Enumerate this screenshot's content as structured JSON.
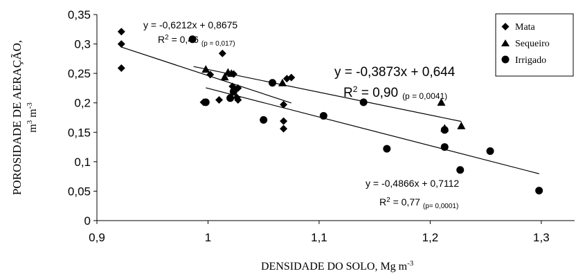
{
  "chart_data": {
    "type": "scatter",
    "xlabel": "DENSIDADE DO SOLO, Mg m",
    "xlabel_sup": "-3",
    "ylabel_line1": "POROSIDADE DE AERAÇÃO,",
    "ylabel_line2_a": "m",
    "ylabel_line2_sup1": "3",
    "ylabel_line2_b": " m",
    "ylabel_line2_sup2": "-3",
    "xlim": [
      0.9,
      1.33
    ],
    "ylim": [
      0,
      0.35
    ],
    "x_ticks": [
      0.9,
      1.0,
      1.1,
      1.2,
      1.3
    ],
    "x_tick_labels": [
      "0,9",
      "1",
      "1,1",
      "1,2",
      "1,3"
    ],
    "y_ticks": [
      0,
      0.05,
      0.1,
      0.15,
      0.2,
      0.25,
      0.3,
      0.35
    ],
    "y_tick_labels": [
      "0",
      "0,05",
      "0,1",
      "0,15",
      "0,2",
      "0,25",
      "0,3",
      "0,35"
    ],
    "legend_position": "top-right",
    "series": [
      {
        "name": "Mata",
        "marker": "diamond",
        "points": [
          [
            0.922,
            0.321
          ],
          [
            0.922,
            0.3
          ],
          [
            0.922,
            0.259
          ],
          [
            1.013,
            0.284
          ],
          [
            1.075,
            0.243
          ],
          [
            1.071,
            0.241
          ],
          [
            1.023,
            0.249
          ],
          [
            1.027,
            0.225
          ],
          [
            1.022,
            0.228
          ],
          [
            1.026,
            0.209
          ],
          [
            1.027,
            0.205
          ],
          [
            0.996,
            0.201
          ],
          [
            1.01,
            0.205
          ],
          [
            1.002,
            0.248
          ],
          [
            1.068,
            0.197
          ],
          [
            1.068,
            0.169
          ],
          [
            1.068,
            0.156
          ]
        ]
      },
      {
        "name": "Sequeiro",
        "marker": "triangle",
        "points": [
          [
            0.998,
            0.257
          ],
          [
            1.015,
            0.244
          ],
          [
            1.018,
            0.252
          ],
          [
            1.021,
            0.25
          ],
          [
            1.067,
            0.234
          ],
          [
            1.21,
            0.201
          ],
          [
            1.228,
            0.161
          ],
          [
            1.213,
            0.157
          ]
        ]
      },
      {
        "name": "Irrigado",
        "marker": "circle",
        "points": [
          [
            0.986,
            0.308
          ],
          [
            0.998,
            0.201
          ],
          [
            1.02,
            0.208
          ],
          [
            1.023,
            0.219
          ],
          [
            1.05,
            0.171
          ],
          [
            1.058,
            0.234
          ],
          [
            1.104,
            0.178
          ],
          [
            1.14,
            0.201
          ],
          [
            1.161,
            0.122
          ],
          [
            1.213,
            0.125
          ],
          [
            1.213,
            0.154
          ],
          [
            1.227,
            0.086
          ],
          [
            1.254,
            0.118
          ],
          [
            1.298,
            0.051
          ]
        ]
      }
    ],
    "trendlines": [
      {
        "series": "Mata",
        "slope": -0.6212,
        "intercept": 0.8675,
        "x_range": [
          0.922,
          1.075
        ]
      },
      {
        "series": "Sequeiro",
        "slope": -0.3873,
        "intercept": 0.644,
        "x_range": [
          0.987,
          1.228
        ]
      },
      {
        "series": "Irrigado",
        "slope": -0.4866,
        "intercept": 0.7112,
        "x_range": [
          0.998,
          1.298
        ]
      }
    ],
    "annotations": {
      "mata_eq": "y = -0,6212x + 0,8675",
      "mata_r2_base": "R",
      "mata_r2_sup": "2",
      "mata_r2_value": " = 0,46",
      "mata_p": "(p = 0,017)",
      "seq_eq": "y = -0,3873x + 0,644",
      "seq_r2_base": "R",
      "seq_r2_sup": "2",
      "seq_r2_value": " = 0,90",
      "seq_p": "(p = 0,0041)",
      "irr_eq": "y = -0,4866x + 0,7112",
      "irr_r2_base": "R",
      "irr_r2_sup": "2",
      "irr_r2_value": " = 0,77",
      "irr_p": "(p= 0,0001)"
    },
    "grid": false
  }
}
